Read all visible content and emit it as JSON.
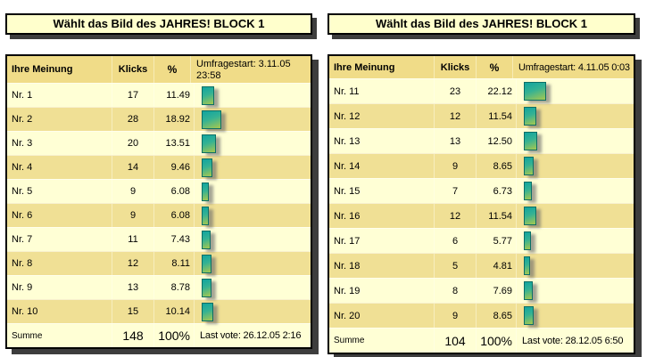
{
  "colors": {
    "title_bg": "#ffffcc",
    "header_bg": "#f0dc88",
    "row_light": "#ffffd5",
    "row_dark": "#f0e095",
    "shadow": "#3d3d3d",
    "bar_top": "#11a4a0",
    "bar_mid": "#35b293",
    "bar_bottom": "#a7c84e"
  },
  "panels": [
    {
      "title": "Wählt das Bild des JAHRES! BLOCK 1",
      "columns": {
        "opinion": "Ihre Meinung",
        "clicks": "Klicks",
        "percent": "%"
      },
      "survey_start": "Umfragestart: 3.11.05 23:58",
      "rows": [
        {
          "label": "Nr. 1",
          "clicks": "17",
          "percent": "11.49"
        },
        {
          "label": "Nr. 2",
          "clicks": "28",
          "percent": "18.92"
        },
        {
          "label": "Nr. 3",
          "clicks": "20",
          "percent": "13.51"
        },
        {
          "label": "Nr. 4",
          "clicks": "14",
          "percent": "9.46"
        },
        {
          "label": "Nr. 5",
          "clicks": "9",
          "percent": "6.08"
        },
        {
          "label": "Nr. 6",
          "clicks": "9",
          "percent": "6.08"
        },
        {
          "label": "Nr. 7",
          "clicks": "11",
          "percent": "7.43"
        },
        {
          "label": "Nr. 8",
          "clicks": "12",
          "percent": "8.11"
        },
        {
          "label": "Nr. 9",
          "clicks": "13",
          "percent": "8.78"
        },
        {
          "label": "Nr. 10",
          "clicks": "15",
          "percent": "10.14"
        }
      ],
      "total": {
        "label": "Summe",
        "clicks": "148",
        "percent": "100%",
        "last_vote": "Last vote: 26.12.05 2:16"
      }
    },
    {
      "title": "Wählt das Bild des JAHRES! BLOCK 1",
      "columns": {
        "opinion": "Ihre Meinung",
        "clicks": "Klicks",
        "percent": "%"
      },
      "survey_start": "Umfragestart: 4.11.05 0:03",
      "rows": [
        {
          "label": "Nr. 11",
          "clicks": "23",
          "percent": "22.12"
        },
        {
          "label": "Nr. 12",
          "clicks": "12",
          "percent": "11.54"
        },
        {
          "label": "Nr. 13",
          "clicks": "13",
          "percent": "12.50"
        },
        {
          "label": "Nr. 14",
          "clicks": "9",
          "percent": "8.65"
        },
        {
          "label": "Nr. 15",
          "clicks": "7",
          "percent": "6.73"
        },
        {
          "label": "Nr. 16",
          "clicks": "12",
          "percent": "11.54"
        },
        {
          "label": "Nr. 17",
          "clicks": "6",
          "percent": "5.77"
        },
        {
          "label": "Nr. 18",
          "clicks": "5",
          "percent": "4.81"
        },
        {
          "label": "Nr. 19",
          "clicks": "8",
          "percent": "7.69"
        },
        {
          "label": "Nr. 20",
          "clicks": "9",
          "percent": "8.65"
        }
      ],
      "total": {
        "label": "Summe",
        "clicks": "104",
        "percent": "100%",
        "last_vote": "Last vote: 28.12.05 6:50"
      }
    }
  ]
}
